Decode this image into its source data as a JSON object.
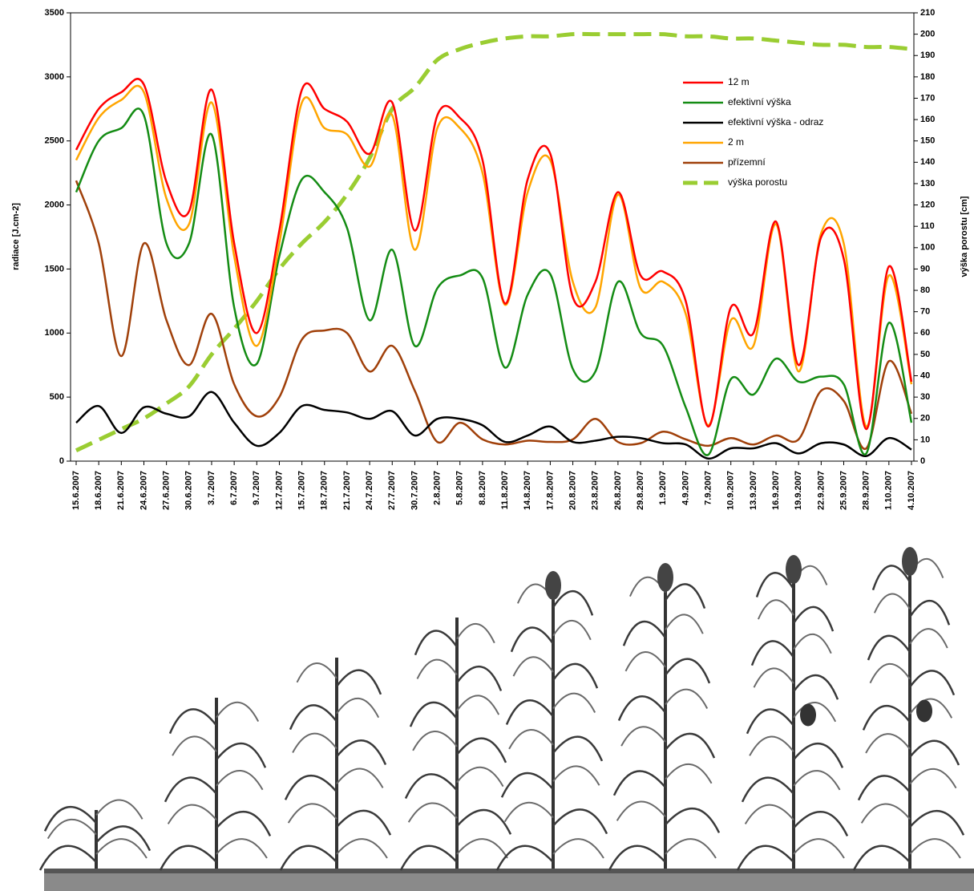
{
  "chart_data": {
    "type": "line",
    "y_label": "radiace [J.cm-2]",
    "y2_label": "výška porostu [cm]",
    "categories": [
      "15.6.2007",
      "18.6.2007",
      "21.6.2007",
      "24.6.2007",
      "27.6.2007",
      "30.6.2007",
      "3.7.2007",
      "6.7.2007",
      "9.7.2007",
      "12.7.2007",
      "15.7.2007",
      "18.7.2007",
      "21.7.2007",
      "24.7.2007",
      "27.7.2007",
      "30.7.2007",
      "2.8.2007",
      "5.8.2007",
      "8.8.2007",
      "11.8.2007",
      "14.8.2007",
      "17.8.2007",
      "20.8.2007",
      "23.8.2007",
      "26.8.2007",
      "29.8.2007",
      "1.9.2007",
      "4.9.2007",
      "7.9.2007",
      "10.9.2007",
      "13.9.2007",
      "16.9.2007",
      "19.9.2007",
      "22.9.2007",
      "25.9.2007",
      "28.9.2007",
      "1.10.2007",
      "4.10.2007"
    ],
    "series": [
      {
        "name": "12 m",
        "color": "#ff0000",
        "values": [
          2430,
          2750,
          2880,
          2940,
          2180,
          1950,
          2900,
          1700,
          1000,
          1800,
          2900,
          2750,
          2650,
          2400,
          2800,
          1800,
          2700,
          2680,
          2350,
          1230,
          2200,
          2400,
          1280,
          1400,
          2100,
          1450,
          1480,
          1250,
          270,
          1200,
          1000,
          1870,
          750,
          1750,
          1580,
          250,
          1520,
          620
        ]
      },
      {
        "name": "efektivní výška",
        "color": "#148c14",
        "values": [
          2100,
          2500,
          2600,
          2700,
          1700,
          1700,
          2550,
          1200,
          760,
          1600,
          2200,
          2100,
          1820,
          1100,
          1650,
          900,
          1350,
          1450,
          1430,
          730,
          1300,
          1460,
          720,
          700,
          1400,
          1000,
          900,
          420,
          50,
          640,
          520,
          800,
          620,
          660,
          600,
          60,
          1080,
          300
        ]
      },
      {
        "name": "efektivní výška - odraz",
        "color": "#000000",
        "values": [
          300,
          430,
          220,
          420,
          370,
          350,
          540,
          300,
          120,
          220,
          430,
          400,
          380,
          330,
          390,
          200,
          330,
          330,
          280,
          150,
          200,
          270,
          150,
          160,
          190,
          180,
          140,
          130,
          20,
          100,
          100,
          140,
          60,
          140,
          130,
          40,
          180,
          90
        ]
      },
      {
        "name": "2 m",
        "color": "#ffa500",
        "values": [
          2350,
          2680,
          2820,
          2880,
          2050,
          1850,
          2800,
          1600,
          900,
          1700,
          2800,
          2600,
          2550,
          2300,
          2700,
          1650,
          2600,
          2600,
          2250,
          1220,
          2100,
          2350,
          1400,
          1200,
          2080,
          1350,
          1400,
          1150,
          280,
          1100,
          900,
          1850,
          700,
          1780,
          1700,
          270,
          1450,
          600
        ]
      },
      {
        "name": "přízemní",
        "color": "#a0400a",
        "values": [
          2190,
          1700,
          820,
          1700,
          1100,
          750,
          1150,
          600,
          350,
          500,
          950,
          1020,
          1000,
          700,
          900,
          550,
          150,
          300,
          170,
          130,
          160,
          150,
          170,
          330,
          150,
          140,
          230,
          170,
          120,
          180,
          130,
          200,
          170,
          550,
          470,
          100,
          780,
          370
        ]
      },
      {
        "name": "výška porostu",
        "color": "#9acd32",
        "dashed": true,
        "axis": "y2",
        "values": [
          5,
          10,
          15,
          20,
          27,
          35,
          50,
          62,
          75,
          90,
          102,
          112,
          125,
          142,
          165,
          175,
          188,
          193,
          196,
          198,
          199,
          199,
          200,
          200,
          200,
          200,
          200,
          199,
          199,
          198,
          198,
          197,
          196,
          195,
          195,
          194,
          194,
          193
        ]
      }
    ],
    "ylim": [
      0,
      3500
    ],
    "yticks": [
      0,
      500,
      1000,
      1500,
      2000,
      2500,
      3000,
      3500
    ],
    "y2lim": [
      0,
      210
    ],
    "y2ticks": [
      0,
      10,
      20,
      30,
      40,
      50,
      60,
      70,
      80,
      90,
      100,
      110,
      120,
      130,
      140,
      150,
      160,
      170,
      180,
      190,
      200,
      210
    ]
  }
}
